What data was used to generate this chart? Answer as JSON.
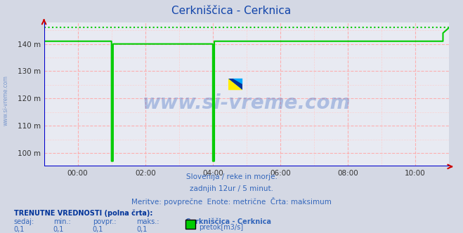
{
  "title": "Cerkniščica - Cerknica",
  "title_color": "#1144aa",
  "bg_color": "#d4d8e4",
  "plot_bg_color": "#e8eaf2",
  "grid_color_major": "#ffaaaa",
  "grid_color_minor": "#ffcccc",
  "line_color": "#00cc00",
  "dotted_line_color": "#00cc00",
  "axis_color": "#0000cc",
  "x_arrow_color": "#cc0000",
  "yticks": [
    100,
    110,
    120,
    130,
    140
  ],
  "ytick_labels": [
    "100 m",
    "110 m",
    "120 m",
    "130 m",
    "140 m"
  ],
  "ylim": [
    95,
    148
  ],
  "xlim": [
    0,
    132
  ],
  "xtick_positions": [
    11,
    33,
    55,
    77,
    99,
    121
  ],
  "xtick_labels": [
    "00:00",
    "02:00",
    "04:00",
    "06:00",
    "08:00",
    "10:00"
  ],
  "watermark": "www.si-vreme.com",
  "watermark_color": "#2255bb",
  "subtitle1": "Slovenija / reke in morje.",
  "subtitle2": "zadnjih 12ur / 5 minut.",
  "subtitle3": "Meritve: povprečne  Enote: metrične  Črta: maksimum",
  "subtitle_color": "#3366bb",
  "footer_bold": "TRENUTNE VREDNOSTI (polna črta):",
  "footer_bold_color": "#003399",
  "col_headers": [
    "sedaj:",
    "min.:",
    "povpr.:",
    "maks.:"
  ],
  "col_values": [
    "0,1",
    "0,1",
    "0,1",
    "0,1"
  ],
  "legend_label": "pretok[m3/s]",
  "station_label": "Cerkniščica - Cerknica",
  "legend_color": "#00cc00",
  "sidebar_text": "www.si-vreme.com",
  "sidebar_color": "#3366bb",
  "dotted_y": 146.0,
  "signal_x": [
    0,
    22,
    22,
    22.5,
    22.5,
    24,
    24,
    55,
    55,
    55.5,
    55.5,
    57,
    57,
    130,
    130,
    132
  ],
  "signal_y": [
    141,
    141,
    97,
    97,
    140,
    140,
    140,
    140,
    97,
    97,
    141,
    141,
    141,
    141,
    144,
    146
  ]
}
